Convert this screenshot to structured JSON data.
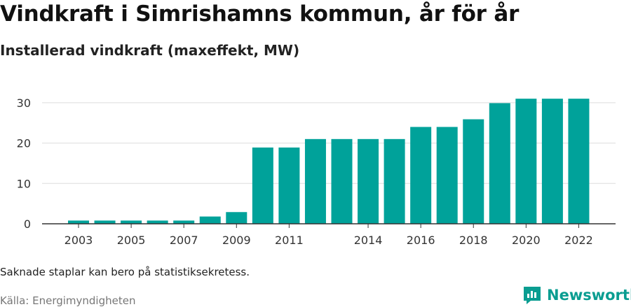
{
  "title": "Vindkraft i Simrishamns kommun, år för år",
  "subtitle": "Installerad vindkraft (maxeffekt, MW)",
  "note": "Saknade staplar kan bero på statistiksekretess.",
  "source": "Källa: Energimyndigheten",
  "brand": {
    "name": "Newsworthy",
    "icon": "newsworthy-logo-icon",
    "color": "#0a9d91"
  },
  "chart_data": {
    "type": "bar",
    "title": "Vindkraft i Simrishamns kommun, år för år",
    "subtitle": "Installerad vindkraft (maxeffekt, MW)",
    "categories": [
      "2003",
      "2004",
      "2005",
      "2006",
      "2007",
      "2008",
      "2009",
      "2010",
      "2011",
      "2012",
      "2013",
      "2014",
      "2015",
      "2016",
      "2017",
      "2018",
      "2019",
      "2020",
      "2021",
      "2022"
    ],
    "values": [
      0.8,
      0.8,
      0.8,
      0.8,
      0.8,
      1.8,
      2.9,
      18.9,
      18.9,
      21,
      21,
      21,
      21,
      24,
      24,
      25.9,
      29.9,
      31,
      31,
      31
    ],
    "x_tick_labels": [
      "2003",
      "2005",
      "2007",
      "2009",
      "2011",
      "2014",
      "2016",
      "2018",
      "2020",
      "2022"
    ],
    "y_ticks": [
      0,
      10,
      20,
      30
    ],
    "ylim": [
      0,
      32
    ],
    "xlabel": "",
    "ylabel": "",
    "grid": true,
    "bar_color": "#00a29a"
  }
}
